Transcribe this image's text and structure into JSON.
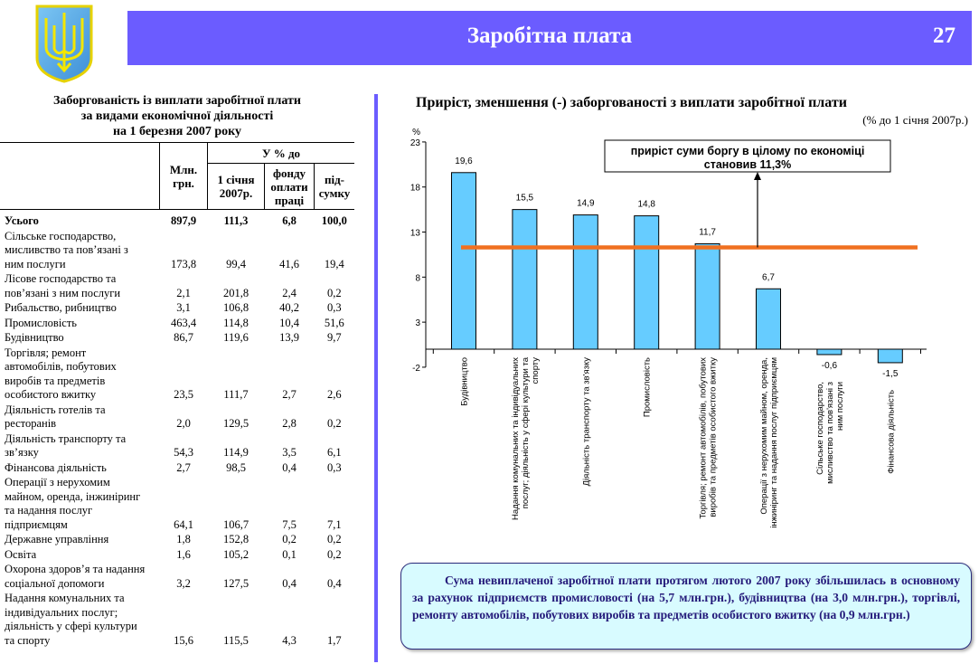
{
  "header": {
    "title": "Заробітна плата",
    "page_number": "27"
  },
  "table": {
    "title_lines": [
      "Заборгованість із виплати заробітної плати",
      "за видами економічної діяльності",
      "на 1 березня 2007 року"
    ],
    "group_header": "У % до",
    "columns": [
      "Млн. грн.",
      "1 січня 2007р.",
      "фонду оплати праці",
      "під-сумку"
    ],
    "total": {
      "label": "Усього",
      "values": [
        "897,9",
        "111,3",
        "6,8",
        "100,0"
      ]
    },
    "rows": [
      {
        "label": "Сільське господарство,\nмисливство та пов’язані з\nним послуги",
        "values": [
          "173,8",
          "99,4",
          "41,6",
          "19,4"
        ]
      },
      {
        "label": "Лісове господарство  та\nпов’язані з ним послуги",
        "values": [
          "2,1",
          "201,8",
          "2,4",
          "0,2"
        ]
      },
      {
        "label": "Рибальство, рибництво",
        "values": [
          "3,1",
          "106,8",
          "40,2",
          "0,3"
        ]
      },
      {
        "label": "Промисловість",
        "values": [
          "463,4",
          "114,8",
          "10,4",
          "51,6"
        ]
      },
      {
        "label": "Будівництво",
        "values": [
          "86,7",
          "119,6",
          "13,9",
          "9,7"
        ]
      },
      {
        "label": "Торгівля; ремонт\nавтомобілів, побутових\nвиробів та предметів\nособистого вжитку",
        "values": [
          "23,5",
          "111,7",
          "2,7",
          "2,6"
        ]
      },
      {
        "label": "Діяльність готелів та\nресторанів",
        "values": [
          "2,0",
          "129,5",
          "2,8",
          "0,2"
        ]
      },
      {
        "label": "Діяльність транспорту та\nзв’язку",
        "values": [
          "54,3",
          "114,9",
          "3,5",
          "6,1"
        ]
      },
      {
        "label": "Фінансова діяльність",
        "values": [
          "2,7",
          "98,5",
          "0,4",
          "0,3"
        ]
      },
      {
        "label": "Операції з нерухомим\nмайном, оренда, інжиніринг\nта надання послуг\nпідприємцям",
        "values": [
          "64,1",
          "106,7",
          "7,5",
          "7,1"
        ]
      },
      {
        "label": "Державне управління",
        "values": [
          "1,8",
          "152,8",
          "0,2",
          "0,2"
        ]
      },
      {
        "label": "Освіта",
        "values": [
          "1,6",
          "105,2",
          "0,1",
          "0,2"
        ]
      },
      {
        "label": "Охорона здоров’я та надання\nсоціальної допомоги",
        "values": [
          "3,2",
          "127,5",
          "0,4",
          "0,4"
        ]
      },
      {
        "label": "Надання комунальних та\nіндивідуальних послуг;\nдіяльність у сфері культури\nта спорту",
        "values": [
          "15,6",
          "115,5",
          "4,3",
          "1,7"
        ]
      }
    ]
  },
  "chart_data": {
    "type": "bar",
    "title": "Приріст, зменшення (-) заборгованості з виплати заробітної плати",
    "subtitle": "(% до 1 січня 2007р.)",
    "ylabel": "%",
    "ylim": [
      -2,
      23
    ],
    "yticks": [
      23,
      18,
      13,
      8,
      3,
      -2
    ],
    "categories": [
      [
        "Будівництво"
      ],
      [
        "Надання комунальних та індивідуальних",
        "послуг; діяльність у сфері культури та",
        "спорту"
      ],
      [
        "Діяльність транспорту та зв'язку"
      ],
      [
        "Промисловість"
      ],
      [
        "Торгівля; ремонт автомобілів, побутових",
        "виробів та предметів особистого вжитку"
      ],
      [
        "Операції з нерухомим майном, оренда,",
        "інжиніринг та надання послуг підприємцям"
      ],
      [
        "Сільське господарство,",
        "мисливство та пов'язані з",
        "ним послуги"
      ],
      [
        "Фінансова діяльність"
      ]
    ],
    "values": [
      19.6,
      15.5,
      14.9,
      14.8,
      11.7,
      6.7,
      -0.6,
      -1.5
    ],
    "value_labels": [
      "19,6",
      "15,5",
      "14,9",
      "14,8",
      "11,7",
      "6,7",
      "-0,6",
      "-1,5"
    ],
    "reference_line": {
      "value": 11.3,
      "color": "#f07020"
    },
    "annotation": [
      "приріст суми боргу в цілому по економіці",
      "становив 11,3%"
    ],
    "bar_color": "#66ccff"
  },
  "note": "Сума невиплаченої заробітної плати протягом лютого 2007 року збільшилась в основному за рахунок підприємств промисловості (на 5,7 млн.грн.), будівництва (на 3,0 млн.грн.), торгівлі, ремонту автомобілів, побутових виробів та предметів особистого вжитку (на 0,9 млн.грн.)"
}
